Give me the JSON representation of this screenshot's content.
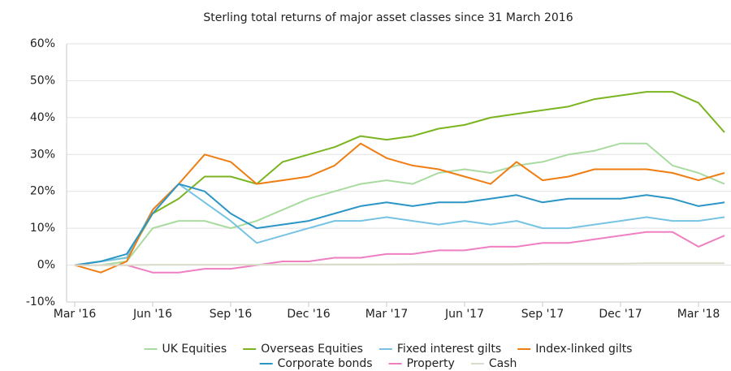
{
  "chart_data": {
    "type": "line",
    "title": "Sterling total returns of major asset classes since 31 March 2016",
    "categories": [
      "Mar '16",
      null,
      null,
      "Jun '16",
      null,
      null,
      "Sep '16",
      null,
      null,
      "Dec '16",
      null,
      null,
      "Mar '17",
      null,
      null,
      "Jun '17",
      null,
      null,
      "Sep '17",
      null,
      null,
      "Dec '17",
      null,
      null,
      "Mar '18",
      null
    ],
    "ylim": [
      -10,
      60
    ],
    "yticks": [
      {
        "value": -10,
        "label": "-10%"
      },
      {
        "value": 0,
        "label": "0%"
      },
      {
        "value": 10,
        "label": "10%"
      },
      {
        "value": 20,
        "label": "20%"
      },
      {
        "value": 30,
        "label": "30%"
      },
      {
        "value": 40,
        "label": "40%"
      },
      {
        "value": 50,
        "label": "50%"
      },
      {
        "value": 60,
        "label": "60%"
      }
    ],
    "grid": true,
    "legend": "bottom",
    "series": [
      {
        "name": "UK Equities",
        "color": "#a9dba0",
        "values": [
          0,
          0,
          1,
          10,
          12,
          12,
          10,
          12,
          15,
          18,
          20,
          22,
          23,
          22,
          25,
          26,
          25,
          27,
          28,
          30,
          31,
          33,
          33,
          27,
          25,
          22
        ]
      },
      {
        "name": "Overseas Equities",
        "color": "#7ab520",
        "values": [
          0,
          1,
          2,
          14,
          18,
          24,
          24,
          22,
          28,
          30,
          32,
          35,
          34,
          35,
          37,
          38,
          40,
          41,
          42,
          43,
          45,
          46,
          47,
          47,
          44,
          36
        ]
      },
      {
        "name": "Fixed interest gilts",
        "color": "#76c3e3",
        "values": [
          0,
          1,
          2,
          15,
          22,
          17,
          12,
          6,
          8,
          10,
          12,
          12,
          13,
          12,
          11,
          12,
          11,
          12,
          10,
          10,
          11,
          12,
          13,
          12,
          12,
          13
        ]
      },
      {
        "name": "Index-linked gilts",
        "color": "#f07d12",
        "values": [
          0,
          -2,
          1,
          15,
          22,
          30,
          28,
          22,
          23,
          24,
          27,
          33,
          29,
          27,
          26,
          24,
          22,
          28,
          23,
          24,
          26,
          26,
          26,
          25,
          23,
          25
        ]
      },
      {
        "name": "Corporate bonds",
        "color": "#2b95c6",
        "values": [
          0,
          1,
          3,
          14,
          22,
          20,
          14,
          10,
          11,
          12,
          14,
          16,
          17,
          16,
          17,
          17,
          18,
          19,
          17,
          18,
          18,
          18,
          19,
          18,
          16,
          17
        ]
      },
      {
        "name": "Property",
        "color": "#ef7fc1",
        "values": [
          0,
          0,
          0,
          -2,
          -2,
          -1,
          -1,
          0,
          1,
          1,
          2,
          2,
          3,
          3,
          4,
          4,
          5,
          5,
          6,
          6,
          7,
          8,
          9,
          9,
          5,
          8
        ]
      },
      {
        "name": "Cash",
        "color": "#d9dcc8",
        "values": [
          0,
          0,
          0,
          0.1,
          0.1,
          0.1,
          0.1,
          0.1,
          0.2,
          0.2,
          0.2,
          0.2,
          0.2,
          0.3,
          0.3,
          0.3,
          0.3,
          0.3,
          0.4,
          0.4,
          0.4,
          0.4,
          0.5,
          0.5,
          0.5,
          0.5
        ]
      }
    ]
  }
}
